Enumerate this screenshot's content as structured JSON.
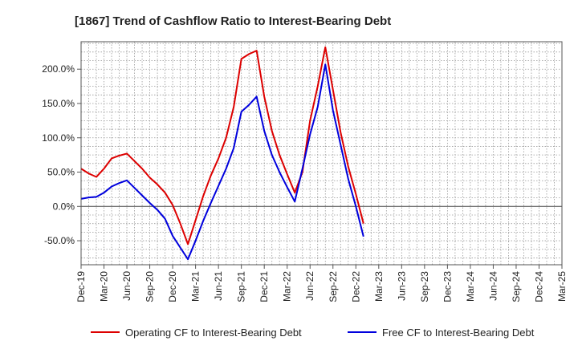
{
  "chart_data": {
    "type": "line",
    "title": "[1867]  Trend of Cashflow Ratio to Interest-Bearing Debt",
    "xlabel": "",
    "ylabel": "",
    "x_tick_labels": [
      "Dec-19",
      "Mar-20",
      "Jun-20",
      "Sep-20",
      "Dec-20",
      "Mar-21",
      "Jun-21",
      "Sep-21",
      "Dec-21",
      "Mar-22",
      "Jun-22",
      "Sep-22",
      "Dec-22",
      "Mar-23",
      "Jun-23",
      "Sep-23",
      "Dec-23",
      "Mar-24",
      "Jun-24",
      "Sep-24",
      "Dec-24",
      "Mar-25"
    ],
    "y_ticks": [
      -50,
      0,
      50,
      100,
      150,
      200
    ],
    "y_tick_labels": [
      "-50.0%",
      "0.0%",
      "50.0%",
      "100.0%",
      "150.0%",
      "200.0%"
    ],
    "ylim": [
      -85,
      240
    ],
    "grid": true,
    "legend_position": "bottom",
    "series": [
      {
        "name": "Operating CF to Interest-Bearing Debt",
        "color": "#dd0000",
        "values": [
          55,
          48,
          43,
          55,
          70,
          74,
          77,
          66,
          55,
          42,
          32,
          20,
          2,
          -25,
          -55,
          -20,
          15,
          45,
          70,
          100,
          145,
          215,
          222,
          227,
          160,
          110,
          75,
          47,
          20,
          50,
          125,
          175,
          232,
          170,
          108,
          58,
          18,
          -25
        ]
      },
      {
        "name": "Free CF to Interest-Bearing Debt",
        "color": "#0000dd",
        "values": [
          11,
          13,
          14,
          20,
          29,
          34,
          38,
          27,
          16,
          5,
          -5,
          -18,
          -43,
          -60,
          -77,
          -50,
          -21,
          5,
          30,
          55,
          85,
          138,
          148,
          160,
          110,
          75,
          50,
          28,
          7,
          55,
          105,
          145,
          207,
          140,
          90,
          40,
          0,
          -44
        ]
      }
    ]
  }
}
